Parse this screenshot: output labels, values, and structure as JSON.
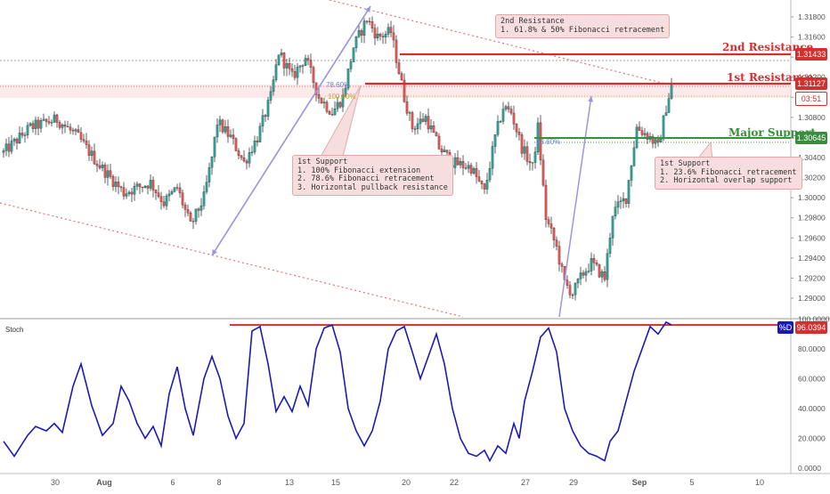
{
  "chart_data": [
    {
      "type": "candlestick",
      "title": "",
      "y_ticks": [
        "1.31800",
        "1.31600",
        "1.31400",
        "1.31200",
        "1.31000",
        "1.30800",
        "1.30600",
        "1.30400",
        "1.30200",
        "1.30000",
        "1.29800",
        "1.29600",
        "1.29400",
        "1.29200",
        "1.29000"
      ],
      "ylim": [
        1.2898,
        1.3192
      ],
      "x_ticks": [
        "30",
        "Aug",
        "6",
        "8",
        "13",
        "15",
        "20",
        "22",
        "27",
        "29",
        "Sep",
        "5",
        "10"
      ],
      "bars_count": 250,
      "trend_up_color": "#26a69a",
      "trend_down_color": "#ef5350",
      "current_price": "1.31127",
      "countdown": "03:51",
      "levels": [
        {
          "name": "2nd Resistance",
          "value": "1.31433",
          "y": 1.31433,
          "color": "#d32f2f"
        },
        {
          "name": "1st Resistance",
          "value": "1.31127",
          "y": 1.31127,
          "color": "#d32f2f"
        },
        {
          "name": "Major Support",
          "value": "1.30645",
          "y": 1.30645,
          "color": "#388e3c"
        }
      ],
      "fib_labels": [
        "78.60%",
        "100.00%",
        "23.60%"
      ],
      "annotations": [
        "2nd Resistance\n1. 61.8% & 50% Fibonacci retracement",
        "1st Support\n1. 100% Fibonacci extension\n2. 78.6% Fibonacci retracement\n3. Horizontal pullback resistance",
        "1st Support\n1. 23.6% Fibonacci retracement\n2. Horizontal overlap support"
      ],
      "path_points": [
        [
          0,
          1.3045
        ],
        [
          10,
          1.307
        ],
        [
          20,
          1.3078
        ],
        [
          28,
          1.306
        ],
        [
          35,
          1.3035
        ],
        [
          45,
          1.3005
        ],
        [
          55,
          1.3015
        ],
        [
          60,
          1.2995
        ],
        [
          65,
          1.301
        ],
        [
          70,
          1.2972
        ],
        [
          75,
          1.3
        ],
        [
          78,
          1.304
        ],
        [
          80,
          1.3075
        ],
        [
          85,
          1.306
        ],
        [
          90,
          1.3035
        ],
        [
          95,
          1.306
        ],
        [
          100,
          1.31
        ],
        [
          103,
          1.3145
        ],
        [
          108,
          1.312
        ],
        [
          113,
          1.314
        ],
        [
          118,
          1.31
        ],
        [
          123,
          1.3085
        ],
        [
          127,
          1.31
        ],
        [
          131,
          1.315
        ],
        [
          136,
          1.3178
        ],
        [
          140,
          1.316
        ],
        [
          145,
          1.3165
        ],
        [
          150,
          1.31
        ],
        [
          153,
          1.307
        ],
        [
          158,
          1.308
        ],
        [
          163,
          1.305
        ],
        [
          168,
          1.3035
        ],
        [
          175,
          1.303
        ],
        [
          180,
          1.3005
        ],
        [
          184,
          1.306
        ],
        [
          187,
          1.309
        ],
        [
          190,
          1.3085
        ],
        [
          194,
          1.305
        ],
        [
          198,
          1.303
        ],
        [
          200,
          1.307
        ],
        [
          203,
          1.298
        ],
        [
          207,
          1.295
        ],
        [
          210,
          1.2915
        ],
        [
          213,
          1.2905
        ],
        [
          217,
          1.2925
        ],
        [
          220,
          1.2935
        ],
        [
          225,
          1.292
        ],
        [
          228,
          1.2985
        ],
        [
          233,
          1.3
        ],
        [
          237,
          1.307
        ],
        [
          242,
          1.306
        ],
        [
          245,
          1.305
        ],
        [
          248,
          1.309
        ],
        [
          250,
          1.3112
        ]
      ]
    },
    {
      "type": "line",
      "name": "Stoch",
      "y_ticks": [
        "100.0000",
        "80.0000",
        "60.0000",
        "40.0000",
        "20.0000",
        "0.0000"
      ],
      "ylim": [
        -2,
        100
      ],
      "series": [
        {
          "name": "%D",
          "color": "#1a1ab8",
          "last_value": "96.0394"
        }
      ],
      "overbought_line": 96.04,
      "path_points": [
        [
          0,
          18
        ],
        [
          4,
          8
        ],
        [
          9,
          22
        ],
        [
          12,
          28
        ],
        [
          16,
          25
        ],
        [
          19,
          30
        ],
        [
          22,
          24
        ],
        [
          26,
          55
        ],
        [
          29,
          70
        ],
        [
          33,
          42
        ],
        [
          37,
          22
        ],
        [
          41,
          30
        ],
        [
          44,
          55
        ],
        [
          47,
          45
        ],
        [
          50,
          30
        ],
        [
          53,
          20
        ],
        [
          56,
          28
        ],
        [
          59,
          15
        ],
        [
          62,
          50
        ],
        [
          65,
          68
        ],
        [
          68,
          40
        ],
        [
          71,
          22
        ],
        [
          75,
          60
        ],
        [
          78,
          75
        ],
        [
          81,
          60
        ],
        [
          84,
          35
        ],
        [
          87,
          20
        ],
        [
          90,
          30
        ],
        [
          93,
          92
        ],
        [
          96,
          95
        ],
        [
          99,
          70
        ],
        [
          102,
          38
        ],
        [
          105,
          48
        ],
        [
          108,
          38
        ],
        [
          111,
          55
        ],
        [
          114,
          42
        ],
        [
          117,
          80
        ],
        [
          120,
          94
        ],
        [
          123,
          96
        ],
        [
          126,
          78
        ],
        [
          129,
          40
        ],
        [
          132,
          25
        ],
        [
          135,
          15
        ],
        [
          138,
          25
        ],
        [
          141,
          45
        ],
        [
          144,
          80
        ],
        [
          147,
          92
        ],
        [
          150,
          95
        ],
        [
          153,
          78
        ],
        [
          156,
          60
        ],
        [
          159,
          75
        ],
        [
          162,
          90
        ],
        [
          165,
          70
        ],
        [
          168,
          40
        ],
        [
          171,
          20
        ],
        [
          174,
          10
        ],
        [
          177,
          8
        ],
        [
          180,
          12
        ],
        [
          182,
          5
        ],
        [
          185,
          15
        ],
        [
          188,
          10
        ],
        [
          191,
          30
        ],
        [
          193,
          20
        ],
        [
          195,
          45
        ],
        [
          198,
          65
        ],
        [
          201,
          88
        ],
        [
          204,
          94
        ],
        [
          207,
          78
        ],
        [
          210,
          40
        ],
        [
          213,
          25
        ],
        [
          216,
          15
        ],
        [
          219,
          10
        ],
        [
          222,
          8
        ],
        [
          225,
          5
        ],
        [
          227,
          18
        ],
        [
          230,
          25
        ],
        [
          233,
          45
        ],
        [
          236,
          65
        ],
        [
          239,
          80
        ],
        [
          242,
          95
        ],
        [
          245,
          90
        ],
        [
          248,
          98
        ],
        [
          250,
          96
        ]
      ]
    }
  ]
}
